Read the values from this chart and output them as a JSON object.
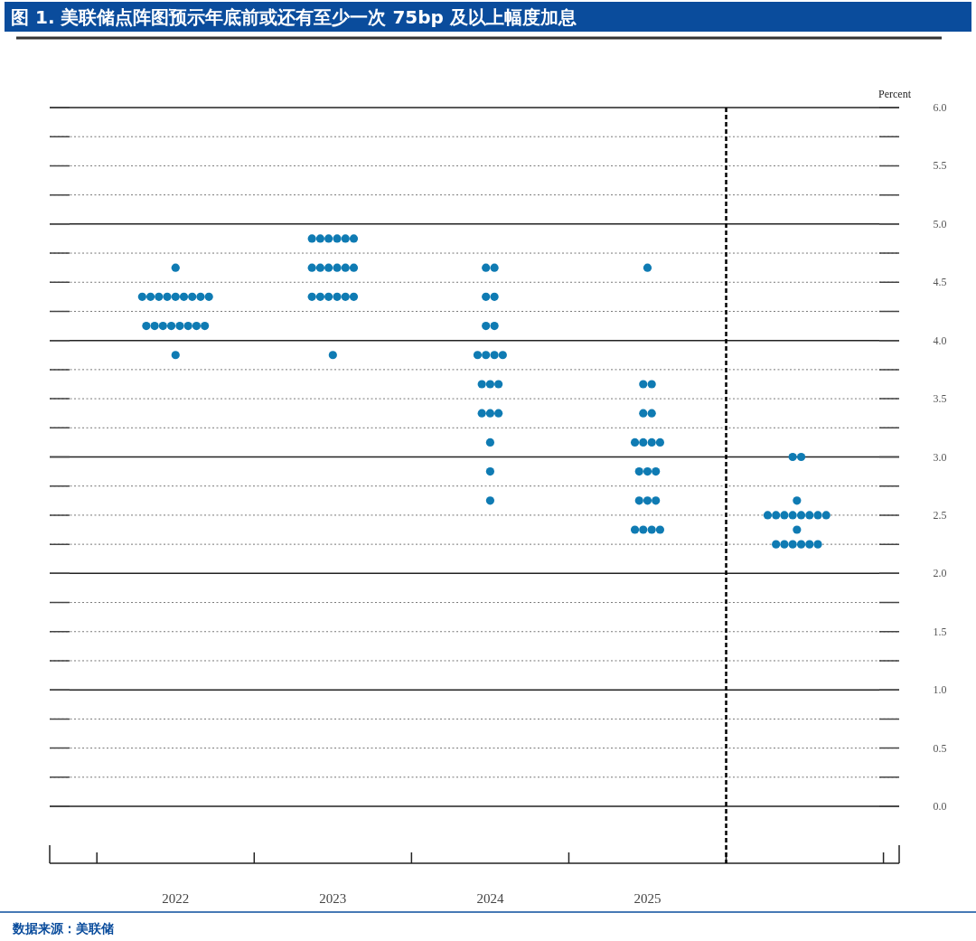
{
  "chart_data": {
    "type": "scatter",
    "title": "图 1. 美联储点阵图预示年底前或还有至少一次 75bp 及以上幅度加息",
    "ylabel": "Percent",
    "annotations": [
      "数据来源：美联储"
    ],
    "series": [
      {
        "color": "#0f7bb3",
        "x": [
          2022,
          2021.788,
          2021.841,
          2021.894,
          2021.947,
          2022,
          2022.053,
          2022.106,
          2022.159,
          2022.212,
          2021.814,
          2021.867,
          2021.92,
          2021.973,
          2022.027,
          2022.08,
          2022.133,
          2022.186,
          2022
        ],
        "values": [
          4.625,
          4.375,
          4.375,
          4.375,
          4.375,
          4.375,
          4.375,
          4.375,
          4.375,
          4.375,
          4.125,
          4.125,
          4.125,
          4.125,
          4.125,
          4.125,
          4.125,
          4.125,
          3.875
        ]
      },
      {
        "color": "#0f7bb3",
        "x": [
          2022.867,
          2022.92,
          2022.973,
          2023.027,
          2023.08,
          2023.133,
          2022.867,
          2022.92,
          2022.973,
          2023.027,
          2023.08,
          2023.133,
          2022.867,
          2022.92,
          2022.973,
          2023.027,
          2023.08,
          2023.133,
          2023
        ],
        "values": [
          4.875,
          4.875,
          4.875,
          4.875,
          4.875,
          4.875,
          4.625,
          4.625,
          4.625,
          4.625,
          4.625,
          4.625,
          4.375,
          4.375,
          4.375,
          4.375,
          4.375,
          4.375,
          3.875
        ]
      },
      {
        "color": "#0f7bb3",
        "x": [
          2023.973,
          2024.027,
          2023.973,
          2024.027,
          2023.973,
          2024.027,
          2023.92,
          2023.973,
          2024.027,
          2024.08,
          2023.947,
          2024,
          2024.053,
          2023.947,
          2024,
          2024.053,
          2024,
          2024,
          2024
        ],
        "values": [
          4.625,
          4.625,
          4.375,
          4.375,
          4.125,
          4.125,
          3.875,
          3.875,
          3.875,
          3.875,
          3.625,
          3.625,
          3.625,
          3.375,
          3.375,
          3.375,
          3.125,
          2.875,
          2.625
        ]
      },
      {
        "color": "#0f7bb3",
        "x": [
          2025,
          2024.973,
          2025.027,
          2024.973,
          2025.027,
          2024.92,
          2024.973,
          2025.027,
          2025.08,
          2024.947,
          2025,
          2025.053,
          2024.947,
          2025,
          2025.053,
          2024.92,
          2024.973,
          2025.027,
          2025.08
        ],
        "values": [
          4.625,
          3.625,
          3.625,
          3.375,
          3.375,
          3.125,
          3.125,
          3.125,
          3.125,
          2.875,
          2.875,
          2.875,
          2.625,
          2.625,
          2.625,
          2.375,
          2.375,
          2.375,
          2.375
        ]
      },
      {
        "color": "#0f7bb3",
        "x": [
          2025.923,
          2025.977,
          2025.95,
          2025.764,
          2025.817,
          2025.87,
          2025.923,
          2025.977,
          2026.03,
          2026.083,
          2026.136,
          2025.95,
          2025.817,
          2025.87,
          2025.923,
          2025.977,
          2026.03,
          2026.083
        ],
        "values": [
          3.0,
          3.0,
          2.625,
          2.5,
          2.5,
          2.5,
          2.5,
          2.5,
          2.5,
          2.5,
          2.5,
          2.375,
          2.25,
          2.25,
          2.25,
          2.25,
          2.25,
          2.25
        ]
      }
    ],
    "xlim": [
      2021.2,
      2026.6
    ],
    "xticks": [
      2022,
      2023,
      2024,
      2025
    ],
    "ylim": [
      0,
      6
    ],
    "yticks": [
      {
        "value": 0,
        "label": "0.0"
      },
      {
        "value": 0.25,
        "label": null
      },
      {
        "value": 0.5,
        "label": "0.5"
      },
      {
        "value": 0.75,
        "label": null
      },
      {
        "value": 1,
        "label": "1.0"
      },
      {
        "value": 1.25,
        "label": null
      },
      {
        "value": 1.5,
        "label": "1.5"
      },
      {
        "value": 1.75,
        "label": null
      },
      {
        "value": 2,
        "label": "2.0"
      },
      {
        "value": 2.25,
        "label": null
      },
      {
        "value": 2.5,
        "label": "2.5"
      },
      {
        "value": 2.75,
        "label": null
      },
      {
        "value": 3,
        "label": "3.0"
      },
      {
        "value": 3.25,
        "label": null
      },
      {
        "value": 3.5,
        "label": "3.5"
      },
      {
        "value": 3.75,
        "label": null
      },
      {
        "value": 4,
        "label": "4.0"
      },
      {
        "value": 4.25,
        "label": null
      },
      {
        "value": 4.5,
        "label": "4.5"
      },
      {
        "value": 4.75,
        "label": null
      },
      {
        "value": 5,
        "label": "5.0"
      },
      {
        "value": 5.25,
        "label": null
      },
      {
        "value": 5.5,
        "label": "5.5"
      },
      {
        "value": 5.75,
        "label": null
      },
      {
        "value": 6,
        "label": "6.0"
      }
    ],
    "grid": "y",
    "marker": "circle",
    "ref_lines": [
      {
        "axis": "x",
        "value": 2025.5,
        "line_style": "dashed",
        "color": "#000000"
      }
    ]
  }
}
